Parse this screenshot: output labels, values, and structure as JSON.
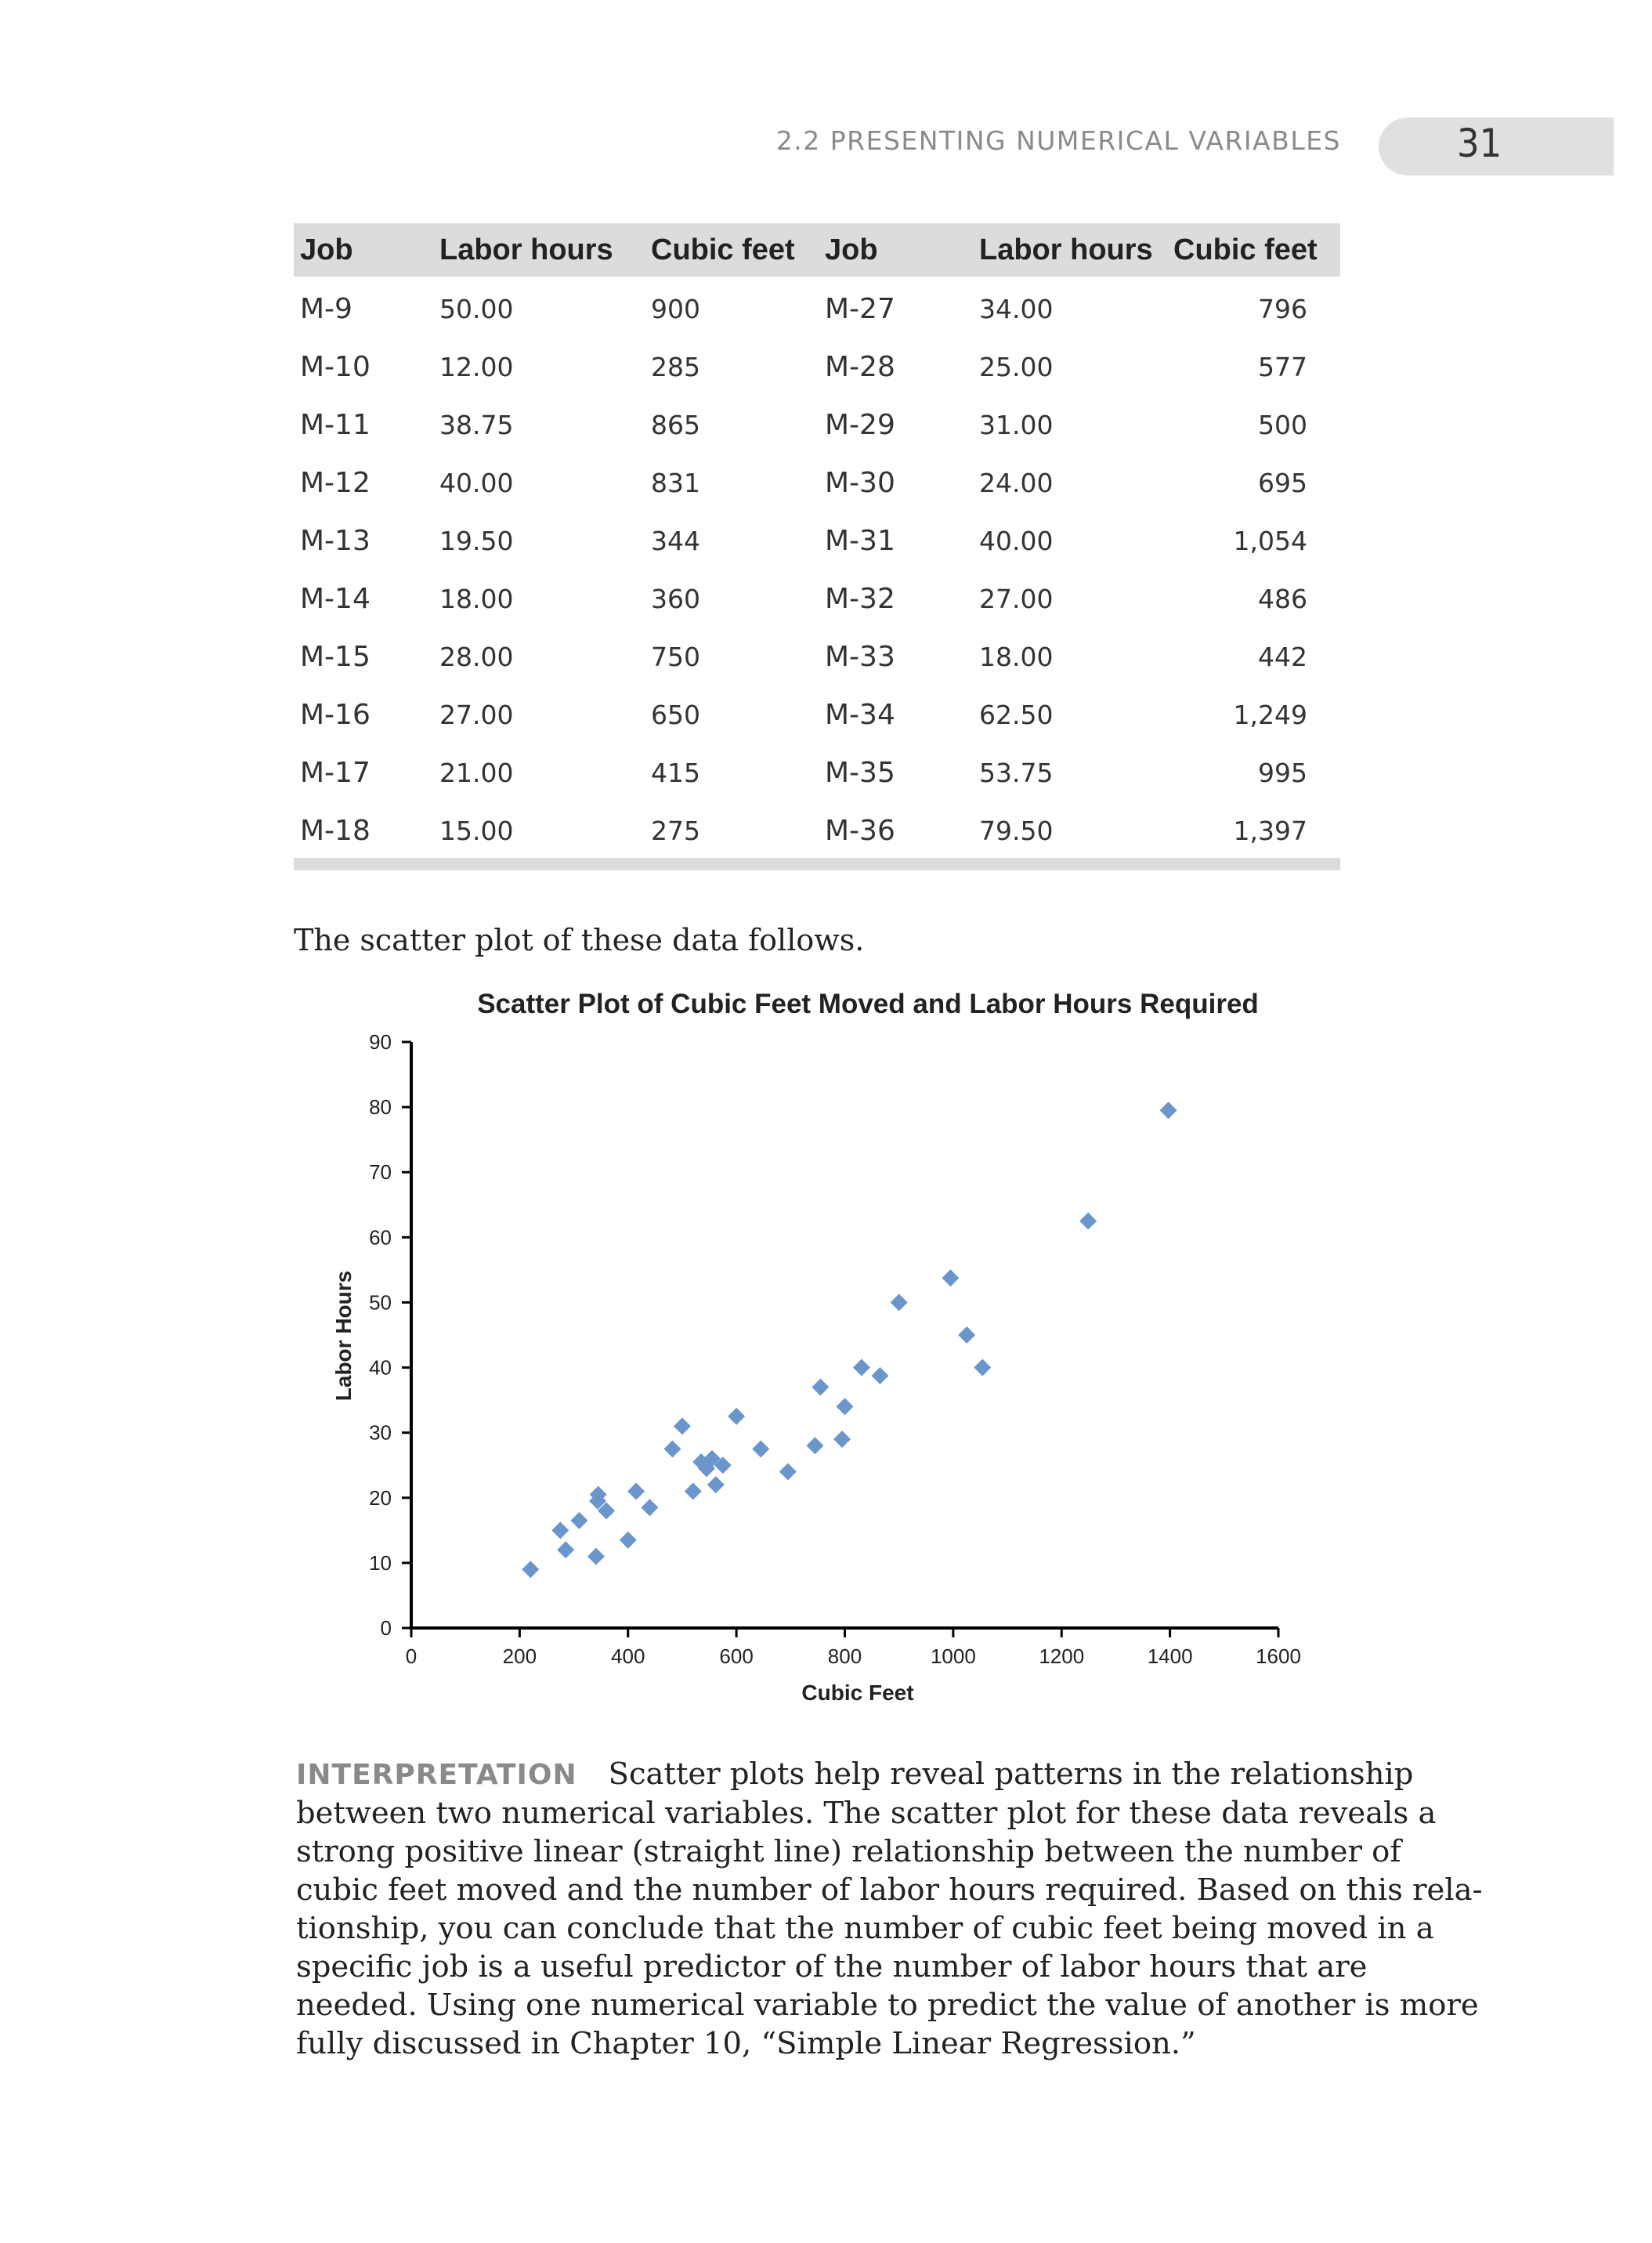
{
  "header": {
    "section_title": "2.2 PRESENTING NUMERICAL VARIABLES",
    "page_number": "31"
  },
  "table": {
    "headers": [
      "Job",
      "Labor hours",
      "Cubic feet",
      "Job",
      "Labor hours",
      "Cubic feet"
    ],
    "rows": [
      [
        "M-9",
        "50.00",
        "900",
        "M-27",
        "34.00",
        "796"
      ],
      [
        "M-10",
        "12.00",
        "285",
        "M-28",
        "25.00",
        "577"
      ],
      [
        "M-11",
        "38.75",
        "865",
        "M-29",
        "31.00",
        "500"
      ],
      [
        "M-12",
        "40.00",
        "831",
        "M-30",
        "24.00",
        "695"
      ],
      [
        "M-13",
        "19.50",
        "344",
        "M-31",
        "40.00",
        "1,054"
      ],
      [
        "M-14",
        "18.00",
        "360",
        "M-32",
        "27.00",
        "486"
      ],
      [
        "M-15",
        "28.00",
        "750",
        "M-33",
        "18.00",
        "442"
      ],
      [
        "M-16",
        "27.00",
        "650",
        "M-34",
        "62.50",
        "1,249"
      ],
      [
        "M-17",
        "21.00",
        "415",
        "M-35",
        "53.75",
        "995"
      ],
      [
        "M-18",
        "15.00",
        "275",
        "M-36",
        "79.50",
        "1,397"
      ]
    ]
  },
  "intro_text": "The scatter plot of these data follows.",
  "chart_data": {
    "type": "scatter",
    "title": "Scatter Plot of Cubic Feet Moved and Labor Hours Required",
    "xlabel": "Cubic Feet",
    "ylabel": "Labor Hours",
    "xlim": [
      0,
      1600
    ],
    "ylim": [
      0,
      90
    ],
    "xticks": [
      0,
      200,
      400,
      600,
      800,
      1000,
      1200,
      1400,
      1600
    ],
    "yticks": [
      0,
      10,
      20,
      30,
      40,
      50,
      60,
      70,
      80,
      90
    ],
    "marker_color": "#6a96cc",
    "points": [
      [
        220,
        9
      ],
      [
        275,
        15
      ],
      [
        285,
        12
      ],
      [
        310,
        16.5
      ],
      [
        341,
        11
      ],
      [
        344,
        19.5
      ],
      [
        345,
        20.5
      ],
      [
        360,
        18
      ],
      [
        400,
        13.5
      ],
      [
        415,
        21
      ],
      [
        440,
        18.5
      ],
      [
        482,
        27.5
      ],
      [
        500,
        31
      ],
      [
        520,
        21
      ],
      [
        535,
        25.5
      ],
      [
        545,
        24.5
      ],
      [
        555,
        26
      ],
      [
        562,
        22
      ],
      [
        575,
        25
      ],
      [
        600,
        32.5
      ],
      [
        645,
        27.5
      ],
      [
        695,
        24
      ],
      [
        745,
        28
      ],
      [
        755,
        37
      ],
      [
        795,
        29
      ],
      [
        800,
        34
      ],
      [
        831,
        40
      ],
      [
        865,
        38.75
      ],
      [
        900,
        50
      ],
      [
        995,
        53.75
      ],
      [
        1025,
        45
      ],
      [
        1054,
        40
      ],
      [
        1249,
        62.5
      ],
      [
        1397,
        79.5
      ]
    ]
  },
  "interpretation": {
    "label": "INTERPRETATION",
    "lines": [
      "Scatter plots help reveal patterns in the relationship",
      "between two numerical variables. The scatter plot for these data reveals a",
      "strong positive linear (straight line) relationship between the number of",
      "cubic feet moved and the number of labor hours required. Based on this rela-",
      "tionship, you can conclude that the number of cubic feet being moved in a",
      "specific job is a useful predictor of the number of labor hours that are",
      "needed. Using one numerical variable to predict the value of another is more",
      "fully discussed in Chapter 10, “Simple Linear Regression.”"
    ]
  }
}
